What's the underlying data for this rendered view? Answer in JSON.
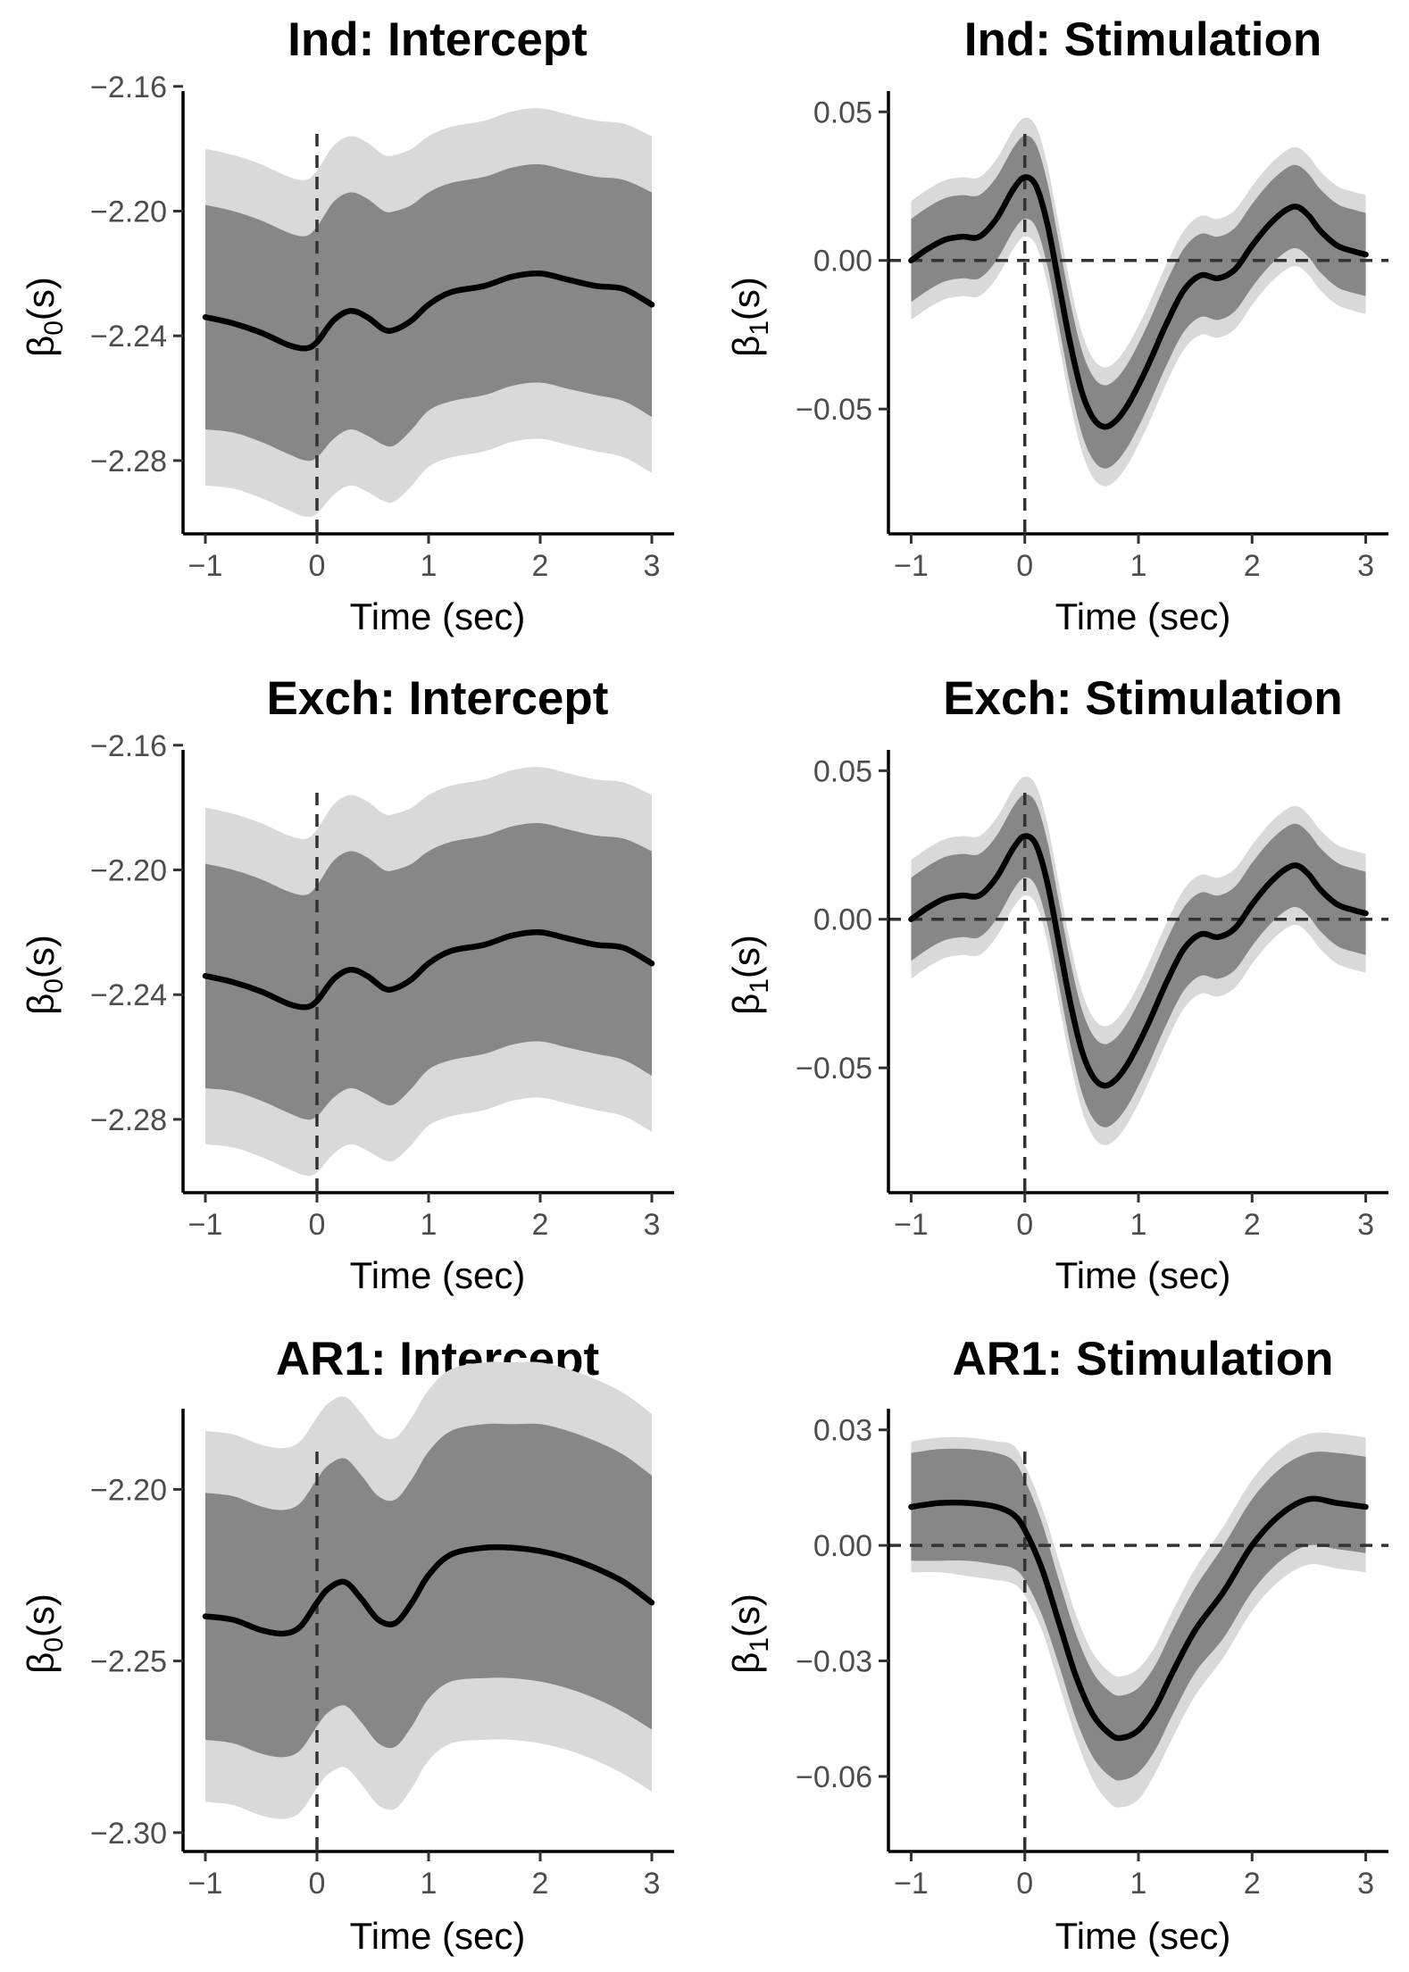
{
  "figure": {
    "band_outer_color": "#d9d9d9",
    "band_inner_color": "#878787",
    "line_color": "#000000",
    "ref_line_color": "#333333",
    "axis_color": "#000000",
    "tick_text_color": "#4d4d4d"
  },
  "chart_data": [
    {
      "type": "area",
      "title": "Ind: Intercept",
      "xlabel": "Time (sec)",
      "ylabel_symbol": "β",
      "ylabel_sub": "0",
      "ylabel_suffix": "(s)",
      "xlim": [
        -1.2,
        3.2
      ],
      "ylim": [
        -2.3035,
        -2.1615
      ],
      "xticks": [
        -1,
        0,
        1,
        2,
        3
      ],
      "xtick_labels": [
        "−1",
        "0",
        "1",
        "2",
        "3"
      ],
      "yticks": [
        -2.16,
        -2.2,
        -2.24,
        -2.28
      ],
      "ytick_labels": [
        "−2.16",
        "−2.20",
        "−2.24",
        "−2.28"
      ],
      "hline": null,
      "vline": 0,
      "x": [
        -1,
        -0.75,
        -0.5,
        -0.25,
        -0.1,
        0,
        0.15,
        0.3,
        0.45,
        0.6,
        0.7,
        0.85,
        1.0,
        1.2,
        1.5,
        1.75,
        2.0,
        2.25,
        2.5,
        2.75,
        3.0
      ],
      "estimate": [
        -2.234,
        -2.236,
        -2.239,
        -2.243,
        -2.244,
        -2.242,
        -2.235,
        -2.232,
        -2.234,
        -2.238,
        -2.238,
        -2.235,
        -2.23,
        -2.226,
        -2.224,
        -2.221,
        -2.22,
        -2.222,
        -2.224,
        -2.225,
        -2.23
      ],
      "inner_lower": [
        -2.27,
        -2.271,
        -2.274,
        -2.278,
        -2.28,
        -2.279,
        -2.273,
        -2.27,
        -2.272,
        -2.275,
        -2.275,
        -2.27,
        -2.264,
        -2.261,
        -2.259,
        -2.256,
        -2.255,
        -2.257,
        -2.259,
        -2.261,
        -2.266
      ],
      "inner_upper": [
        -2.198,
        -2.2,
        -2.203,
        -2.207,
        -2.208,
        -2.205,
        -2.197,
        -2.194,
        -2.196,
        -2.2,
        -2.2,
        -2.198,
        -2.194,
        -2.191,
        -2.189,
        -2.186,
        -2.185,
        -2.187,
        -2.189,
        -2.19,
        -2.194
      ],
      "outer_lower": [
        -2.288,
        -2.289,
        -2.292,
        -2.296,
        -2.298,
        -2.297,
        -2.291,
        -2.288,
        -2.29,
        -2.293,
        -2.293,
        -2.288,
        -2.282,
        -2.279,
        -2.277,
        -2.274,
        -2.273,
        -2.275,
        -2.277,
        -2.279,
        -2.284
      ],
      "outer_upper": [
        -2.18,
        -2.182,
        -2.185,
        -2.189,
        -2.19,
        -2.187,
        -2.179,
        -2.176,
        -2.178,
        -2.182,
        -2.182,
        -2.18,
        -2.176,
        -2.173,
        -2.171,
        -2.168,
        -2.167,
        -2.169,
        -2.171,
        -2.172,
        -2.176
      ]
    },
    {
      "type": "area",
      "title": "Ind: Stimulation",
      "xlabel": "Time (sec)",
      "ylabel_symbol": "β",
      "ylabel_sub": "1",
      "ylabel_suffix": "(s)",
      "xlim": [
        -1.2,
        3.2
      ],
      "ylim": [
        -0.092,
        0.057
      ],
      "xticks": [
        -1,
        0,
        1,
        2,
        3
      ],
      "xtick_labels": [
        "−1",
        "0",
        "1",
        "2",
        "3"
      ],
      "yticks": [
        0.05,
        0.0,
        -0.05
      ],
      "ytick_labels": [
        "0.05",
        "0.00",
        "−0.05"
      ],
      "hline": 0,
      "vline": 0,
      "x": [
        -1,
        -0.85,
        -0.7,
        -0.55,
        -0.4,
        -0.25,
        -0.1,
        0,
        0.1,
        0.2,
        0.3,
        0.4,
        0.5,
        0.6,
        0.7,
        0.8,
        0.9,
        1.0,
        1.1,
        1.25,
        1.4,
        1.55,
        1.7,
        1.85,
        2.0,
        2.15,
        2.3,
        2.4,
        2.5,
        2.6,
        2.75,
        2.9,
        3.0
      ],
      "estimate": [
        0.0,
        0.004,
        0.007,
        0.008,
        0.008,
        0.014,
        0.024,
        0.028,
        0.025,
        0.012,
        -0.008,
        -0.028,
        -0.044,
        -0.053,
        -0.056,
        -0.054,
        -0.049,
        -0.042,
        -0.034,
        -0.021,
        -0.01,
        -0.005,
        -0.006,
        -0.003,
        0.005,
        0.012,
        0.017,
        0.018,
        0.015,
        0.01,
        0.005,
        0.003,
        0.002
      ],
      "inner_lower": [
        -0.014,
        -0.01,
        -0.007,
        -0.006,
        -0.006,
        0.0,
        0.01,
        0.014,
        0.011,
        -0.002,
        -0.022,
        -0.042,
        -0.058,
        -0.067,
        -0.07,
        -0.068,
        -0.063,
        -0.056,
        -0.048,
        -0.035,
        -0.024,
        -0.019,
        -0.02,
        -0.017,
        -0.009,
        -0.002,
        0.003,
        0.004,
        0.001,
        -0.004,
        -0.009,
        -0.011,
        -0.012
      ],
      "inner_upper": [
        0.014,
        0.018,
        0.021,
        0.022,
        0.022,
        0.028,
        0.038,
        0.042,
        0.039,
        0.026,
        0.006,
        -0.014,
        -0.03,
        -0.039,
        -0.042,
        -0.04,
        -0.035,
        -0.028,
        -0.02,
        -0.007,
        0.004,
        0.009,
        0.008,
        0.011,
        0.019,
        0.026,
        0.031,
        0.032,
        0.029,
        0.024,
        0.019,
        0.017,
        0.016
      ],
      "outer_lower": [
        -0.02,
        -0.016,
        -0.013,
        -0.012,
        -0.012,
        -0.006,
        0.004,
        0.008,
        0.005,
        -0.008,
        -0.028,
        -0.048,
        -0.064,
        -0.073,
        -0.076,
        -0.074,
        -0.069,
        -0.062,
        -0.054,
        -0.041,
        -0.03,
        -0.025,
        -0.026,
        -0.023,
        -0.015,
        -0.008,
        -0.003,
        -0.002,
        -0.005,
        -0.01,
        -0.015,
        -0.017,
        -0.018
      ],
      "outer_upper": [
        0.02,
        0.024,
        0.027,
        0.028,
        0.028,
        0.034,
        0.044,
        0.048,
        0.045,
        0.032,
        0.012,
        -0.008,
        -0.024,
        -0.033,
        -0.036,
        -0.034,
        -0.029,
        -0.022,
        -0.014,
        -0.001,
        0.01,
        0.015,
        0.014,
        0.017,
        0.025,
        0.032,
        0.037,
        0.038,
        0.035,
        0.03,
        0.025,
        0.023,
        0.022
      ]
    },
    {
      "type": "area",
      "title": "Exch: Intercept",
      "xlabel": "Time (sec)",
      "ylabel_symbol": "β",
      "ylabel_sub": "0",
      "ylabel_suffix": "(s)",
      "xlim": [
        -1.2,
        3.2
      ],
      "ylim": [
        -2.3035,
        -2.1615
      ],
      "xticks": [
        -1,
        0,
        1,
        2,
        3
      ],
      "xtick_labels": [
        "−1",
        "0",
        "1",
        "2",
        "3"
      ],
      "yticks": [
        -2.16,
        -2.2,
        -2.24,
        -2.28
      ],
      "ytick_labels": [
        "−2.16",
        "−2.20",
        "−2.24",
        "−2.28"
      ],
      "hline": null,
      "vline": 0,
      "x": [
        -1,
        -0.75,
        -0.5,
        -0.25,
        -0.1,
        0,
        0.15,
        0.3,
        0.45,
        0.6,
        0.7,
        0.85,
        1.0,
        1.2,
        1.5,
        1.75,
        2.0,
        2.25,
        2.5,
        2.75,
        3.0
      ],
      "estimate": [
        -2.234,
        -2.236,
        -2.239,
        -2.243,
        -2.244,
        -2.242,
        -2.235,
        -2.232,
        -2.234,
        -2.238,
        -2.238,
        -2.235,
        -2.23,
        -2.226,
        -2.224,
        -2.221,
        -2.22,
        -2.222,
        -2.224,
        -2.225,
        -2.23
      ],
      "inner_lower": [
        -2.27,
        -2.271,
        -2.274,
        -2.278,
        -2.28,
        -2.279,
        -2.273,
        -2.27,
        -2.272,
        -2.275,
        -2.275,
        -2.27,
        -2.264,
        -2.261,
        -2.259,
        -2.256,
        -2.255,
        -2.257,
        -2.259,
        -2.261,
        -2.266
      ],
      "inner_upper": [
        -2.198,
        -2.2,
        -2.203,
        -2.207,
        -2.208,
        -2.205,
        -2.197,
        -2.194,
        -2.196,
        -2.2,
        -2.2,
        -2.198,
        -2.194,
        -2.191,
        -2.189,
        -2.186,
        -2.185,
        -2.187,
        -2.189,
        -2.19,
        -2.194
      ],
      "outer_lower": [
        -2.288,
        -2.289,
        -2.292,
        -2.296,
        -2.298,
        -2.297,
        -2.291,
        -2.288,
        -2.29,
        -2.293,
        -2.293,
        -2.288,
        -2.282,
        -2.279,
        -2.277,
        -2.274,
        -2.273,
        -2.275,
        -2.277,
        -2.279,
        -2.284
      ],
      "outer_upper": [
        -2.18,
        -2.182,
        -2.185,
        -2.189,
        -2.19,
        -2.187,
        -2.179,
        -2.176,
        -2.178,
        -2.182,
        -2.182,
        -2.18,
        -2.176,
        -2.173,
        -2.171,
        -2.168,
        -2.167,
        -2.169,
        -2.171,
        -2.172,
        -2.176
      ]
    },
    {
      "type": "area",
      "title": "Exch: Stimulation",
      "xlabel": "Time (sec)",
      "ylabel_symbol": "β",
      "ylabel_sub": "1",
      "ylabel_suffix": "(s)",
      "xlim": [
        -1.2,
        3.2
      ],
      "ylim": [
        -0.092,
        0.057
      ],
      "xticks": [
        -1,
        0,
        1,
        2,
        3
      ],
      "xtick_labels": [
        "−1",
        "0",
        "1",
        "2",
        "3"
      ],
      "yticks": [
        0.05,
        0.0,
        -0.05
      ],
      "ytick_labels": [
        "0.05",
        "0.00",
        "−0.05"
      ],
      "hline": 0,
      "vline": 0,
      "x": [
        -1,
        -0.85,
        -0.7,
        -0.55,
        -0.4,
        -0.25,
        -0.1,
        0,
        0.1,
        0.2,
        0.3,
        0.4,
        0.5,
        0.6,
        0.7,
        0.8,
        0.9,
        1.0,
        1.1,
        1.25,
        1.4,
        1.55,
        1.7,
        1.85,
        2.0,
        2.15,
        2.3,
        2.4,
        2.5,
        2.6,
        2.75,
        2.9,
        3.0
      ],
      "estimate": [
        0.0,
        0.004,
        0.007,
        0.008,
        0.008,
        0.014,
        0.024,
        0.028,
        0.025,
        0.012,
        -0.008,
        -0.028,
        -0.044,
        -0.053,
        -0.056,
        -0.054,
        -0.049,
        -0.042,
        -0.034,
        -0.021,
        -0.01,
        -0.005,
        -0.006,
        -0.003,
        0.005,
        0.012,
        0.017,
        0.018,
        0.015,
        0.01,
        0.005,
        0.003,
        0.002
      ],
      "inner_lower": [
        -0.014,
        -0.01,
        -0.007,
        -0.006,
        -0.006,
        0.0,
        0.01,
        0.014,
        0.011,
        -0.002,
        -0.022,
        -0.042,
        -0.058,
        -0.067,
        -0.07,
        -0.068,
        -0.063,
        -0.056,
        -0.048,
        -0.035,
        -0.024,
        -0.019,
        -0.02,
        -0.017,
        -0.009,
        -0.002,
        0.003,
        0.004,
        0.001,
        -0.004,
        -0.009,
        -0.011,
        -0.012
      ],
      "inner_upper": [
        0.014,
        0.018,
        0.021,
        0.022,
        0.022,
        0.028,
        0.038,
        0.042,
        0.039,
        0.026,
        0.006,
        -0.014,
        -0.03,
        -0.039,
        -0.042,
        -0.04,
        -0.035,
        -0.028,
        -0.02,
        -0.007,
        0.004,
        0.009,
        0.008,
        0.011,
        0.019,
        0.026,
        0.031,
        0.032,
        0.029,
        0.024,
        0.019,
        0.017,
        0.016
      ],
      "outer_lower": [
        -0.02,
        -0.016,
        -0.013,
        -0.012,
        -0.012,
        -0.006,
        0.004,
        0.008,
        0.005,
        -0.008,
        -0.028,
        -0.048,
        -0.064,
        -0.073,
        -0.076,
        -0.074,
        -0.069,
        -0.062,
        -0.054,
        -0.041,
        -0.03,
        -0.025,
        -0.026,
        -0.023,
        -0.015,
        -0.008,
        -0.003,
        -0.002,
        -0.005,
        -0.01,
        -0.015,
        -0.017,
        -0.018
      ],
      "outer_upper": [
        0.02,
        0.024,
        0.027,
        0.028,
        0.028,
        0.034,
        0.044,
        0.048,
        0.045,
        0.032,
        0.012,
        -0.008,
        -0.024,
        -0.033,
        -0.036,
        -0.034,
        -0.029,
        -0.022,
        -0.014,
        -0.001,
        0.01,
        0.015,
        0.014,
        0.017,
        0.025,
        0.032,
        0.037,
        0.038,
        0.035,
        0.03,
        0.025,
        0.023,
        0.022
      ]
    },
    {
      "type": "area",
      "title": "AR1: Intercept",
      "xlabel": "Time (sec)",
      "ylabel_symbol": "β",
      "ylabel_sub": "0",
      "ylabel_suffix": "(s)",
      "xlim": [
        -1.2,
        3.2
      ],
      "ylim": [
        -2.3055,
        -2.1765
      ],
      "xticks": [
        -1,
        0,
        1,
        2,
        3
      ],
      "xtick_labels": [
        "−1",
        "0",
        "1",
        "2",
        "3"
      ],
      "yticks": [
        -2.2,
        -2.25,
        -2.3
      ],
      "ytick_labels": [
        "−2.20",
        "−2.25",
        "−2.30"
      ],
      "hline": null,
      "vline": 0,
      "x": [
        -1,
        -0.75,
        -0.5,
        -0.3,
        -0.15,
        0,
        0.1,
        0.25,
        0.4,
        0.55,
        0.7,
        0.85,
        1.0,
        1.2,
        1.5,
        1.75,
        2.0,
        2.25,
        2.5,
        2.75,
        3.0
      ],
      "estimate": [
        -2.237,
        -2.238,
        -2.241,
        -2.242,
        -2.24,
        -2.233,
        -2.229,
        -2.227,
        -2.232,
        -2.238,
        -2.239,
        -2.233,
        -2.225,
        -2.219,
        -2.217,
        -2.217,
        -2.218,
        -2.22,
        -2.223,
        -2.227,
        -2.233
      ],
      "inner_lower": [
        -2.273,
        -2.274,
        -2.277,
        -2.278,
        -2.276,
        -2.269,
        -2.265,
        -2.263,
        -2.268,
        -2.274,
        -2.275,
        -2.269,
        -2.261,
        -2.256,
        -2.255,
        -2.255,
        -2.256,
        -2.258,
        -2.261,
        -2.265,
        -2.27
      ],
      "inner_upper": [
        -2.201,
        -2.202,
        -2.205,
        -2.206,
        -2.204,
        -2.197,
        -2.193,
        -2.191,
        -2.196,
        -2.202,
        -2.203,
        -2.197,
        -2.189,
        -2.183,
        -2.181,
        -2.181,
        -2.181,
        -2.183,
        -2.186,
        -2.19,
        -2.196
      ],
      "outer_lower": [
        -2.291,
        -2.292,
        -2.295,
        -2.296,
        -2.294,
        -2.287,
        -2.283,
        -2.281,
        -2.286,
        -2.292,
        -2.293,
        -2.287,
        -2.279,
        -2.274,
        -2.273,
        -2.273,
        -2.274,
        -2.276,
        -2.279,
        -2.283,
        -2.288
      ],
      "outer_upper": [
        -2.183,
        -2.184,
        -2.187,
        -2.188,
        -2.186,
        -2.179,
        -2.175,
        -2.173,
        -2.178,
        -2.184,
        -2.185,
        -2.179,
        -2.171,
        -2.165,
        -2.163,
        -2.163,
        -2.163,
        -2.165,
        -2.168,
        -2.172,
        -2.178
      ]
    },
    {
      "type": "area",
      "title": "AR1: Stimulation",
      "xlabel": "Time (sec)",
      "ylabel_symbol": "β",
      "ylabel_sub": "1",
      "ylabel_suffix": "(s)",
      "xlim": [
        -1.2,
        3.2
      ],
      "ylim": [
        -0.0795,
        0.0355
      ],
      "xticks": [
        -1,
        0,
        1,
        2,
        3
      ],
      "xtick_labels": [
        "−1",
        "0",
        "1",
        "2",
        "3"
      ],
      "yticks": [
        0.03,
        0.0,
        -0.03,
        -0.06
      ],
      "ytick_labels": [
        "0.03",
        "0.00",
        "−0.03",
        "−0.06"
      ],
      "hline": 0,
      "vline": 0,
      "x": [
        -1,
        -0.75,
        -0.5,
        -0.25,
        -0.1,
        0,
        0.15,
        0.3,
        0.45,
        0.6,
        0.75,
        0.85,
        1.0,
        1.15,
        1.3,
        1.5,
        1.75,
        2.0,
        2.25,
        2.5,
        2.75,
        3.0
      ],
      "estimate": [
        0.01,
        0.011,
        0.011,
        0.01,
        0.008,
        0.004,
        -0.006,
        -0.02,
        -0.034,
        -0.044,
        -0.049,
        -0.05,
        -0.048,
        -0.042,
        -0.033,
        -0.022,
        -0.012,
        0.0,
        0.008,
        0.012,
        0.011,
        0.01
      ],
      "inner_lower": [
        -0.004,
        -0.004,
        -0.004,
        -0.005,
        -0.006,
        -0.009,
        -0.018,
        -0.031,
        -0.045,
        -0.055,
        -0.06,
        -0.061,
        -0.059,
        -0.053,
        -0.044,
        -0.033,
        -0.024,
        -0.012,
        -0.004,
        0.0,
        -0.001,
        -0.002
      ],
      "inner_upper": [
        0.024,
        0.025,
        0.025,
        0.024,
        0.022,
        0.017,
        0.006,
        -0.009,
        -0.023,
        -0.033,
        -0.038,
        -0.039,
        -0.037,
        -0.031,
        -0.022,
        -0.011,
        0.0,
        0.012,
        0.02,
        0.024,
        0.024,
        0.023
      ],
      "outer_lower": [
        -0.007,
        -0.007,
        -0.008,
        -0.009,
        -0.01,
        -0.013,
        -0.022,
        -0.036,
        -0.05,
        -0.061,
        -0.067,
        -0.068,
        -0.066,
        -0.059,
        -0.05,
        -0.039,
        -0.029,
        -0.017,
        -0.009,
        -0.005,
        -0.006,
        -0.007
      ],
      "outer_upper": [
        0.027,
        0.028,
        0.028,
        0.027,
        0.026,
        0.021,
        0.01,
        -0.004,
        -0.018,
        -0.028,
        -0.033,
        -0.034,
        -0.032,
        -0.026,
        -0.017,
        -0.006,
        0.005,
        0.017,
        0.025,
        0.029,
        0.029,
        0.028
      ]
    }
  ]
}
